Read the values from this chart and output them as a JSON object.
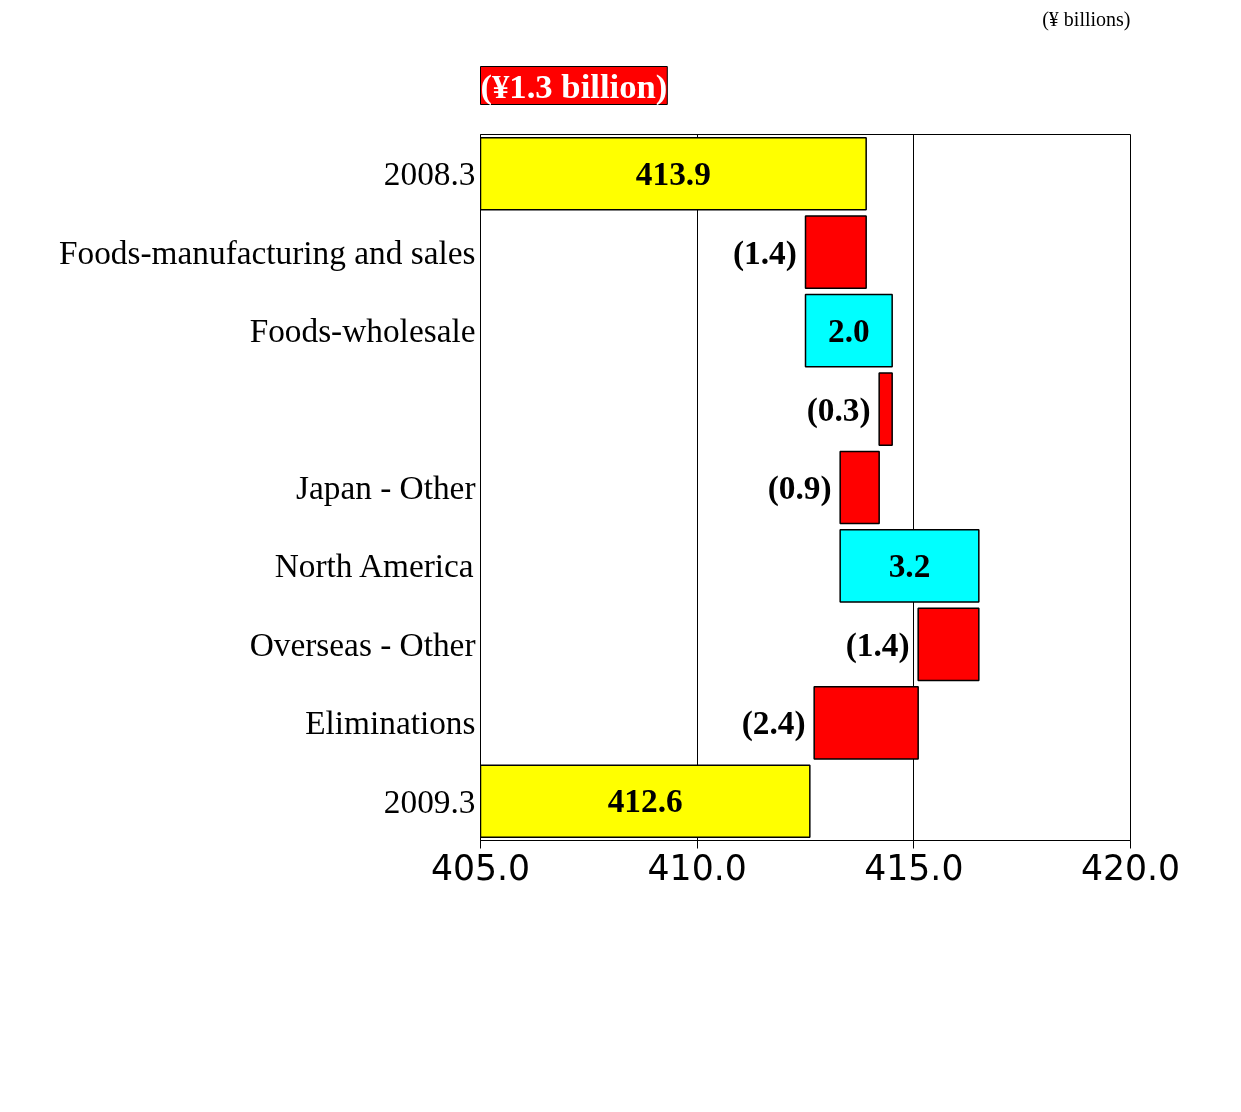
{
  "chart_data": {
    "type": "bar",
    "orientation": "horizontal",
    "categories": [
      "2008.3",
      "Foods-manufacturing and sales",
      "Foods-wholesale",
      null,
      "Japan - Other",
      "North America",
      "Overseas - Other",
      "Eliminations",
      "2009.3"
    ],
    "base": [
      405,
      413.9,
      412.5,
      414.5,
      414.2,
      413.3,
      416.5,
      415.1,
      405
    ],
    "values": [
      8.9,
      -1.4,
      2.0,
      -0.3,
      -0.9,
      3.2,
      -1.4,
      -2.4,
      7.6
    ],
    "colors": [
      "#ffff00",
      "#ff0000",
      "#00ffff",
      "#ff0000",
      "#ff0000",
      "#00ffff",
      "#ff0000",
      "#ff0000",
      "#ffff00"
    ],
    "value_labels": [
      "413.9",
      "(1.4)",
      "2.0",
      "(0.3)",
      "(0.9)",
      "3.2",
      "(1.4)",
      "(2.4)",
      "412.6"
    ],
    "xlim": [
      405,
      420
    ],
    "xticks": [
      {
        "value": 405,
        "label": "405.0"
      },
      {
        "value": 410,
        "label": "410.0"
      },
      {
        "value": 415,
        "label": "415.0"
      },
      {
        "value": 420,
        "label": "420.0"
      }
    ],
    "grid": "x",
    "annotations": [
      "(¥1.3 billion)",
      "(¥ billions)"
    ]
  }
}
